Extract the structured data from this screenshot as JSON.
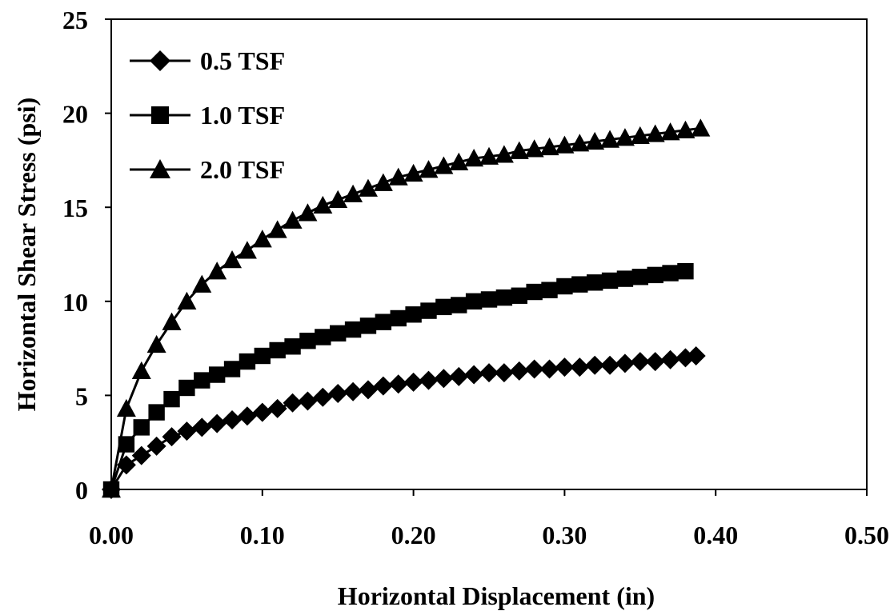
{
  "chart_data": {
    "type": "line",
    "title": "",
    "xlabel": "Horizontal Displacement (in)",
    "ylabel": "Horizontal Shear Stress (psi)",
    "xlim": [
      0,
      0.5
    ],
    "ylim": [
      0,
      25
    ],
    "x_ticks": [
      "0.00",
      "0.10",
      "0.20",
      "0.30",
      "0.40",
      "0.50"
    ],
    "y_ticks": [
      "0",
      "5",
      "10",
      "15",
      "20",
      "25"
    ],
    "grid": false,
    "legend_position": "top-left",
    "series": [
      {
        "name": "0.5 TSF",
        "marker": "diamond",
        "color": "#000000",
        "x": [
          0.0,
          0.01,
          0.02,
          0.03,
          0.04,
          0.05,
          0.06,
          0.07,
          0.08,
          0.09,
          0.1,
          0.11,
          0.12,
          0.13,
          0.14,
          0.15,
          0.16,
          0.17,
          0.18,
          0.19,
          0.2,
          0.21,
          0.22,
          0.23,
          0.24,
          0.25,
          0.26,
          0.27,
          0.28,
          0.29,
          0.3,
          0.31,
          0.32,
          0.33,
          0.34,
          0.35,
          0.36,
          0.37,
          0.38,
          0.387
        ],
        "y": [
          0.0,
          1.3,
          1.8,
          2.3,
          2.8,
          3.1,
          3.3,
          3.5,
          3.7,
          3.9,
          4.1,
          4.3,
          4.6,
          4.7,
          4.9,
          5.1,
          5.2,
          5.3,
          5.5,
          5.6,
          5.7,
          5.8,
          5.9,
          6.0,
          6.1,
          6.2,
          6.2,
          6.3,
          6.4,
          6.4,
          6.5,
          6.5,
          6.6,
          6.6,
          6.7,
          6.8,
          6.8,
          6.9,
          7.0,
          7.1
        ]
      },
      {
        "name": "1.0 TSF",
        "marker": "square",
        "color": "#000000",
        "x": [
          0.0,
          0.01,
          0.02,
          0.03,
          0.04,
          0.05,
          0.06,
          0.07,
          0.08,
          0.09,
          0.1,
          0.11,
          0.12,
          0.13,
          0.14,
          0.15,
          0.16,
          0.17,
          0.18,
          0.19,
          0.2,
          0.21,
          0.22,
          0.23,
          0.24,
          0.25,
          0.26,
          0.27,
          0.28,
          0.29,
          0.3,
          0.31,
          0.32,
          0.33,
          0.34,
          0.35,
          0.36,
          0.37,
          0.38
        ],
        "y": [
          0.0,
          2.4,
          3.3,
          4.1,
          4.8,
          5.4,
          5.8,
          6.1,
          6.4,
          6.8,
          7.1,
          7.4,
          7.6,
          7.9,
          8.1,
          8.3,
          8.5,
          8.7,
          8.9,
          9.1,
          9.3,
          9.5,
          9.7,
          9.8,
          10.0,
          10.1,
          10.2,
          10.3,
          10.5,
          10.6,
          10.8,
          10.9,
          11.0,
          11.1,
          11.2,
          11.3,
          11.4,
          11.5,
          11.6
        ]
      },
      {
        "name": "2.0 TSF",
        "marker": "triangle",
        "color": "#000000",
        "x": [
          0.0,
          0.01,
          0.02,
          0.03,
          0.04,
          0.05,
          0.06,
          0.07,
          0.08,
          0.09,
          0.1,
          0.11,
          0.12,
          0.13,
          0.14,
          0.15,
          0.16,
          0.17,
          0.18,
          0.19,
          0.2,
          0.21,
          0.22,
          0.23,
          0.24,
          0.25,
          0.26,
          0.27,
          0.28,
          0.29,
          0.3,
          0.31,
          0.32,
          0.33,
          0.34,
          0.35,
          0.36,
          0.37,
          0.38,
          0.39
        ],
        "y": [
          0.0,
          4.3,
          6.3,
          7.7,
          8.9,
          10.0,
          10.9,
          11.6,
          12.2,
          12.7,
          13.3,
          13.8,
          14.3,
          14.7,
          15.1,
          15.4,
          15.7,
          16.0,
          16.3,
          16.6,
          16.8,
          17.0,
          17.2,
          17.4,
          17.6,
          17.7,
          17.8,
          18.0,
          18.1,
          18.2,
          18.3,
          18.4,
          18.5,
          18.6,
          18.7,
          18.8,
          18.9,
          19.0,
          19.1,
          19.2
        ]
      }
    ]
  }
}
